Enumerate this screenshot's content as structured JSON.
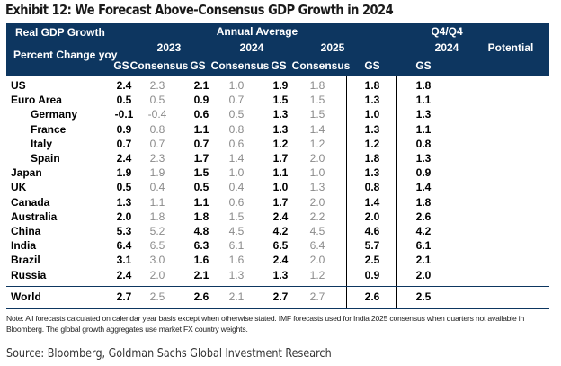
{
  "title": "Exhibit 12: We Forecast Above-Consensus GDP Growth in 2024",
  "header": {
    "row_label_1": "Real GDP Growth",
    "row_label_2": "Percent Change yoy",
    "annual_average": "Annual Average",
    "q4q4": "Q4/Q4",
    "year_2023": "2023",
    "year_2024": "2024",
    "year_2025": "2025",
    "q4_year": "2024",
    "potential": "Potential",
    "gs": "GS",
    "consensus": "Consensus"
  },
  "chart_data": {
    "type": "table",
    "title": "Exhibit 12: We Forecast Above-Consensus GDP Growth in 2024",
    "columns": [
      "2023 GS",
      "2023 Consensus",
      "2024 GS",
      "2024 Consensus",
      "2025 GS",
      "2025 Consensus",
      "Q4/Q4 2024 GS",
      "Potential GS"
    ],
    "rows": [
      {
        "label": "US",
        "indent": false,
        "values": [
          "2.4",
          "2.3",
          "2.1",
          "1.0",
          "1.9",
          "1.8",
          "1.8",
          "1.8"
        ]
      },
      {
        "label": "Euro Area",
        "indent": false,
        "values": [
          "0.5",
          "0.5",
          "0.9",
          "0.7",
          "1.5",
          "1.5",
          "1.3",
          "1.1"
        ]
      },
      {
        "label": "Germany",
        "indent": true,
        "values": [
          "-0.1",
          "-0.4",
          "0.6",
          "0.5",
          "1.3",
          "1.5",
          "1.0",
          "1.3"
        ]
      },
      {
        "label": "France",
        "indent": true,
        "values": [
          "0.9",
          "0.8",
          "1.1",
          "0.8",
          "1.3",
          "1.4",
          "1.3",
          "1.1"
        ]
      },
      {
        "label": "Italy",
        "indent": true,
        "values": [
          "0.7",
          "0.7",
          "0.7",
          "0.6",
          "1.2",
          "1.2",
          "1.2",
          "0.8"
        ]
      },
      {
        "label": "Spain",
        "indent": true,
        "values": [
          "2.4",
          "2.3",
          "1.7",
          "1.4",
          "1.7",
          "2.0",
          "1.8",
          "1.3"
        ]
      },
      {
        "label": "Japan",
        "indent": false,
        "values": [
          "1.9",
          "1.9",
          "1.5",
          "1.0",
          "1.1",
          "1.0",
          "1.3",
          "0.9"
        ]
      },
      {
        "label": "UK",
        "indent": false,
        "values": [
          "0.5",
          "0.4",
          "0.5",
          "0.4",
          "1.0",
          "1.3",
          "0.8",
          "1.4"
        ]
      },
      {
        "label": "Canada",
        "indent": false,
        "values": [
          "1.3",
          "1.1",
          "1.1",
          "0.6",
          "1.7",
          "2.0",
          "1.4",
          "1.8"
        ]
      },
      {
        "label": "Australia",
        "indent": false,
        "values": [
          "2.0",
          "1.8",
          "1.8",
          "1.5",
          "2.4",
          "2.2",
          "2.0",
          "2.6"
        ]
      },
      {
        "label": "China",
        "indent": false,
        "values": [
          "5.3",
          "5.2",
          "4.8",
          "4.5",
          "4.2",
          "4.5",
          "4.6",
          "4.2"
        ]
      },
      {
        "label": "India",
        "indent": false,
        "values": [
          "6.4",
          "6.5",
          "6.3",
          "6.1",
          "6.5",
          "6.4",
          "5.7",
          "6.1"
        ]
      },
      {
        "label": "Brazil",
        "indent": false,
        "values": [
          "3.1",
          "3.0",
          "1.6",
          "1.6",
          "2.4",
          "2.0",
          "2.5",
          "2.1"
        ]
      },
      {
        "label": "Russia",
        "indent": false,
        "values": [
          "2.4",
          "2.0",
          "2.1",
          "1.3",
          "1.3",
          "1.2",
          "0.9",
          "2.0"
        ]
      },
      {
        "label": "World",
        "indent": false,
        "values": [
          "2.7",
          "2.5",
          "2.6",
          "2.1",
          "2.7",
          "2.7",
          "2.6",
          "2.5"
        ]
      }
    ]
  },
  "note": "Note: All forecasts calculated on calendar year basis except when otherwise stated. IMF forecasts used for India 2025 consensus when quarters not available in Bloomberg. The global growth aggregates use market FX country weights.",
  "source": "Source: Bloomberg, Goldman Sachs Global Investment Research"
}
